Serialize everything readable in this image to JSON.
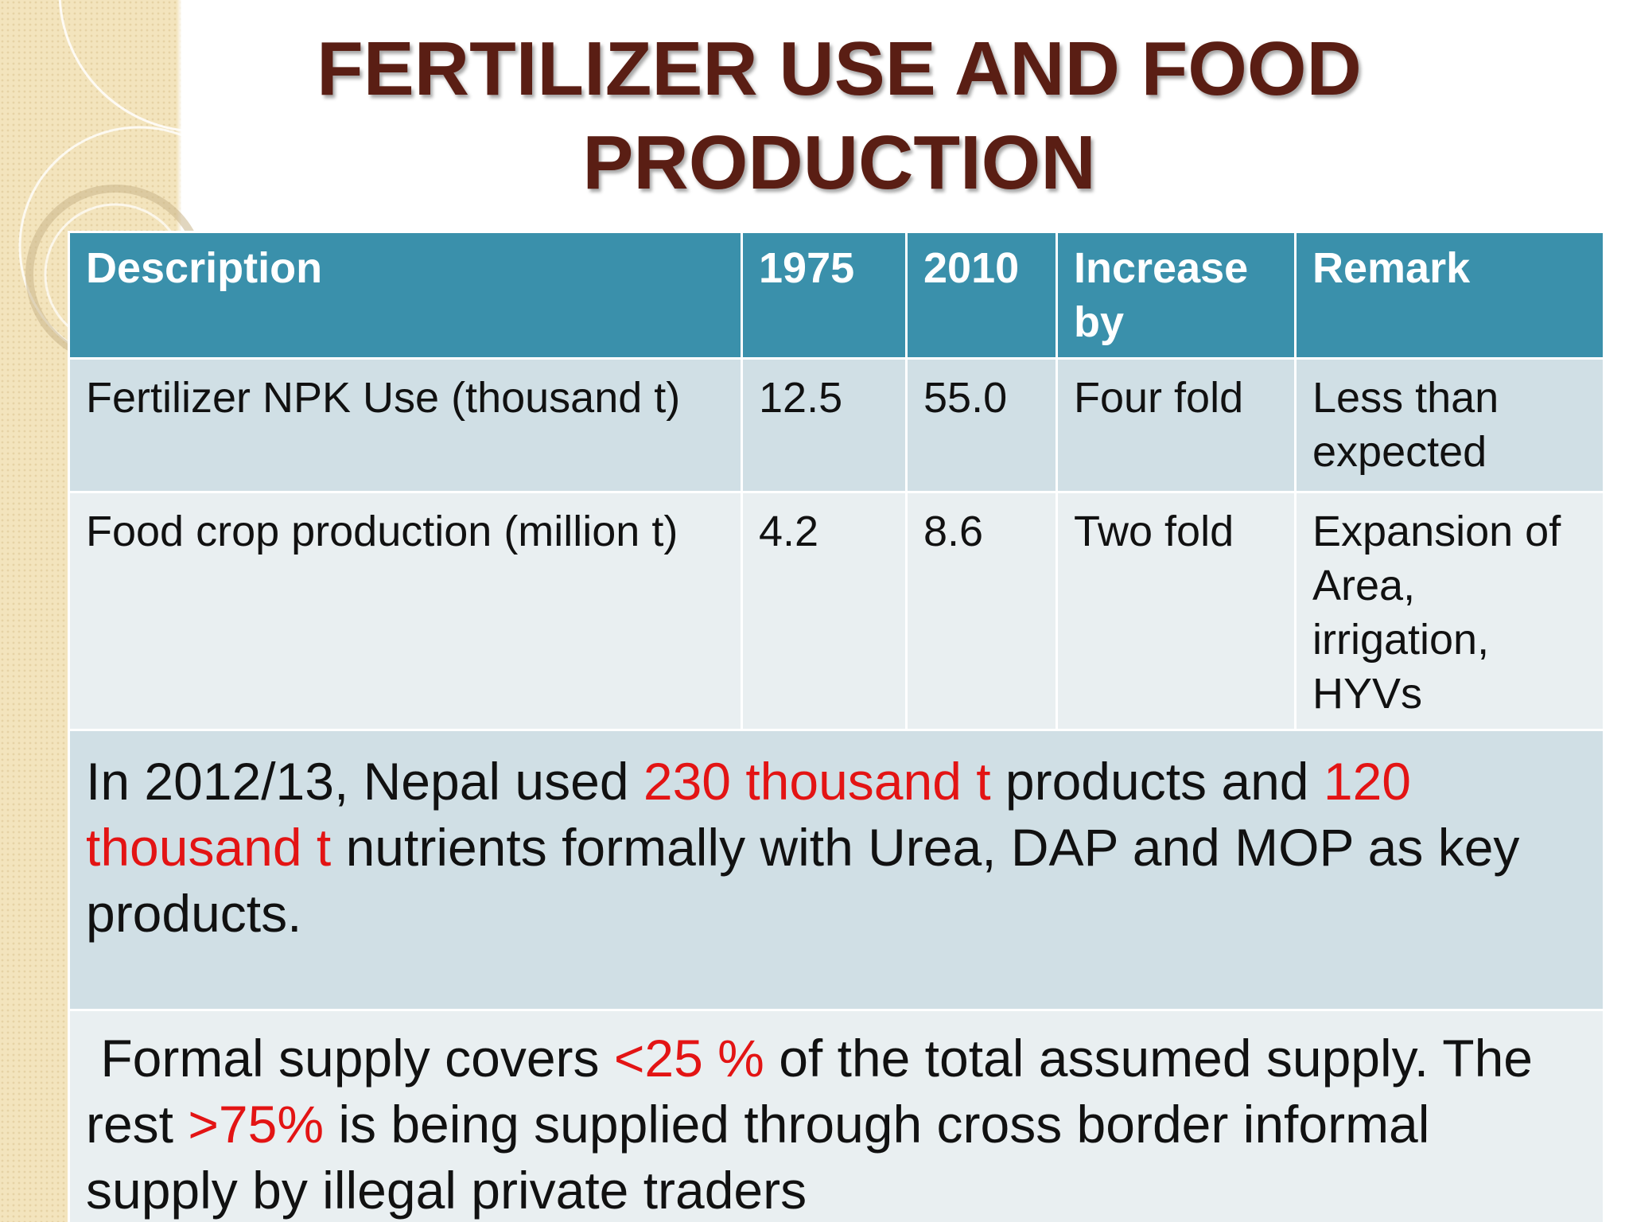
{
  "slide": {
    "title_line1": "FERTILIZER USE AND FOOD",
    "title_line2": "PRODUCTION"
  },
  "table": {
    "headers": [
      "Description",
      "1975",
      "2010",
      "Increase by",
      "Remark"
    ],
    "rows": [
      {
        "description": "Fertilizer NPK Use (thousand t)",
        "y1975": "12.5",
        "y2010": "55.0",
        "increase": "Four fold",
        "remark": "Less than expected"
      },
      {
        "description": "Food crop production (million t)",
        "y1975": "4.2",
        "y2010": "8.6",
        "increase": "Two fold",
        "remark": "Expansion of Area, irrigation, HYVs"
      }
    ]
  },
  "notes": {
    "note1": {
      "part1": "In 2012/13, Nepal used  ",
      "hl1": "230 thousand t",
      "part2": " products and ",
      "hl2": "120 thousand t",
      "part3": " nutrients formally with Urea, DAP and MOP as key products."
    },
    "note2": {
      "part1": " Formal supply covers ",
      "hl1": "<25 %",
      "part2": " of the total assumed supply. The rest ",
      "hl2": ">75%",
      "part3": " is being supplied through cross border informal supply  by illegal private traders"
    }
  },
  "colors": {
    "title": "#5a1e14",
    "header_bg": "#3a90ab",
    "row_dark": "#d0dfe5",
    "row_light": "#e9eff1",
    "highlight": "#e31414",
    "deco": "#f3e4bd"
  }
}
